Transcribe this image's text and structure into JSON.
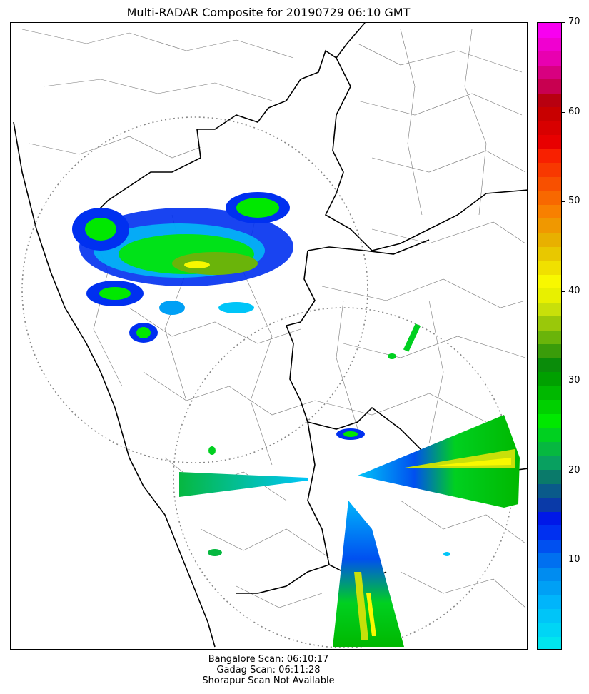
{
  "title": "Multi-RADAR Composite for 20190729 06:10 GMT",
  "colorbar": {
    "min": 0,
    "max": 70,
    "ticks": [
      "10",
      "20",
      "30",
      "40",
      "50",
      "60",
      "70"
    ],
    "tick_values": [
      10,
      20,
      30,
      40,
      50,
      60,
      70
    ],
    "colors": [
      "#00e5ee",
      "#00d5f5",
      "#00c5f8",
      "#00b5fb",
      "#00a0f5",
      "#008cf0",
      "#0070f0",
      "#0050f0",
      "#0030f0",
      "#0018e8",
      "#0a3aa8",
      "#0a5a8a",
      "#0a7a6a",
      "#08a060",
      "#06b840",
      "#00d020",
      "#00e800",
      "#00d000",
      "#00b800",
      "#00a000",
      "#0a8c0a",
      "#3a9c0a",
      "#6ab40a",
      "#9ac80a",
      "#c8e00a",
      "#e8f000",
      "#f8f800",
      "#f0e000",
      "#e8c800",
      "#e8b000",
      "#f09800",
      "#f88000",
      "#f86800",
      "#f85000",
      "#f83800",
      "#f82000",
      "#e80000",
      "#d80000",
      "#c80000",
      "#b80010",
      "#c80050",
      "#d80080",
      "#e800b0",
      "#f000d0",
      "#f800f0"
    ]
  },
  "radar_circles": [
    {
      "name": "Gadag",
      "cx": 272,
      "cy": 405,
      "r": 242
    },
    {
      "name": "Bangalore",
      "cx": 480,
      "cy": 668,
      "r": 238
    }
  ],
  "footer": {
    "line1": "Bangalore Scan: 06:10:17",
    "line2": "Gadag Scan: 06:11:28",
    "line3": "Shorapur Scan Not Available"
  }
}
